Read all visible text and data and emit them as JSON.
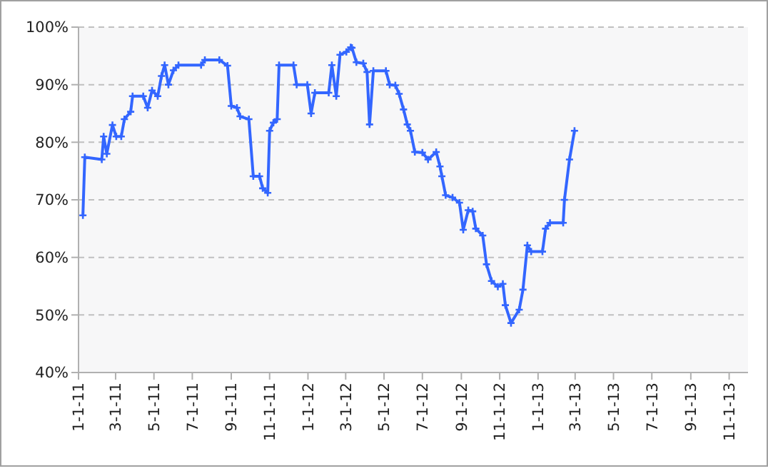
{
  "chart_data": {
    "type": "line",
    "x": [
      "2011-01-08",
      "2011-01-11",
      "2011-02-07",
      "2011-02-10",
      "2011-02-15",
      "2011-02-24",
      "2011-03-02",
      "2011-03-10",
      "2011-03-15",
      "2011-03-25",
      "2011-03-28",
      "2011-04-14",
      "2011-04-21",
      "2011-04-28",
      "2011-05-07",
      "2011-05-13",
      "2011-05-18",
      "2011-05-24",
      "2011-06-01",
      "2011-06-09",
      "2011-07-15",
      "2011-07-21",
      "2011-08-13",
      "2011-08-26",
      "2011-09-01",
      "2011-09-10",
      "2011-09-15",
      "2011-09-29",
      "2011-10-06",
      "2011-10-16",
      "2011-10-21",
      "2011-10-29",
      "2011-11-01",
      "2011-11-07",
      "2011-11-13",
      "2011-11-16",
      "2011-12-09",
      "2011-12-14",
      "2011-12-31",
      "2012-01-06",
      "2012-01-12",
      "2012-02-03",
      "2012-02-08",
      "2012-02-15",
      "2012-02-21",
      "2012-03-02",
      "2012-03-09",
      "2012-03-11",
      "2012-03-18",
      "2012-03-29",
      "2012-04-04",
      "2012-04-08",
      "2012-04-14",
      "2012-05-04",
      "2012-05-10",
      "2012-05-19",
      "2012-05-25",
      "2012-06-01",
      "2012-06-07",
      "2012-06-12",
      "2012-06-19",
      "2012-07-01",
      "2012-07-10",
      "2012-07-23",
      "2012-07-29",
      "2012-08-01",
      "2012-08-07",
      "2012-08-18",
      "2012-08-29",
      "2012-09-04",
      "2012-09-12",
      "2012-09-19",
      "2012-09-24",
      "2012-10-05",
      "2012-10-11",
      "2012-10-19",
      "2012-10-29",
      "2012-11-06",
      "2012-11-10",
      "2012-11-19",
      "2012-12-02",
      "2012-12-08",
      "2012-12-15",
      "2012-12-21",
      "2013-01-08",
      "2013-01-13",
      "2013-01-20",
      "2013-02-10",
      "2013-02-12",
      "2013-02-20",
      "2013-02-28"
    ],
    "series": [
      {
        "color": "#3366ff",
        "values": [
          67.3,
          77.4,
          77,
          81,
          78,
          83,
          81,
          81,
          84,
          85.3,
          88,
          88,
          86,
          89,
          88,
          91.5,
          93.4,
          90,
          92.5,
          93.4,
          93.4,
          94.3,
          94.3,
          93.3,
          86.3,
          86,
          84.5,
          84,
          74.1,
          74.1,
          72,
          71.2,
          82,
          83.4,
          84,
          93.4,
          93.4,
          90,
          90,
          85,
          88.6,
          88.6,
          93.4,
          88,
          95.2,
          95.7,
          96.5,
          96.4,
          93.9,
          93.7,
          92.2,
          83.1,
          92.4,
          92.4,
          90,
          89.9,
          88.4,
          85.7,
          83.1,
          82,
          78.3,
          78.2,
          77,
          78.3,
          75.8,
          74.1,
          70.8,
          70.4,
          69.5,
          64.8,
          68.2,
          68,
          65,
          63.8,
          58.8,
          55.9,
          54.9,
          55.4,
          51.7,
          48.6,
          50.9,
          54.4,
          62.1,
          61,
          61,
          65,
          66,
          66,
          70,
          77,
          82
        ]
      }
    ],
    "xlim": [
      "2011-01-01",
      "2013-12-01"
    ],
    "xticks": [
      {
        "value": "2011-01-01",
        "label": "1-1-11"
      },
      {
        "value": "2011-03-01",
        "label": "3-1-11"
      },
      {
        "value": "2011-05-01",
        "label": "5-1-11"
      },
      {
        "value": "2011-07-01",
        "label": "7-1-11"
      },
      {
        "value": "2011-09-01",
        "label": "9-1-11"
      },
      {
        "value": "2011-11-01",
        "label": "11-1-11"
      },
      {
        "value": "2012-01-01",
        "label": "1-1-12"
      },
      {
        "value": "2012-03-01",
        "label": "3-1-12"
      },
      {
        "value": "2012-05-01",
        "label": "5-1-12"
      },
      {
        "value": "2012-07-01",
        "label": "7-1-12"
      },
      {
        "value": "2012-09-01",
        "label": "9-1-12"
      },
      {
        "value": "2012-11-01",
        "label": "11-1-12"
      },
      {
        "value": "2013-01-01",
        "label": "1-1-13"
      },
      {
        "value": "2013-03-01",
        "label": "3-1-13"
      },
      {
        "value": "2013-05-01",
        "label": "5-1-13"
      },
      {
        "value": "2013-07-01",
        "label": "7-1-13"
      },
      {
        "value": "2013-09-01",
        "label": "9-1-13"
      },
      {
        "value": "2013-11-01",
        "label": "11-1-13"
      }
    ],
    "ylim": [
      40,
      100
    ],
    "yticks": [
      {
        "value": 40,
        "label": "40%"
      },
      {
        "value": 50,
        "label": "50%"
      },
      {
        "value": 60,
        "label": "60%"
      },
      {
        "value": 70,
        "label": "70%"
      },
      {
        "value": 80,
        "label": "80%"
      },
      {
        "value": 90,
        "label": "90%"
      },
      {
        "value": 100,
        "label": "100%"
      }
    ],
    "grid": "y",
    "marker": "cross"
  }
}
